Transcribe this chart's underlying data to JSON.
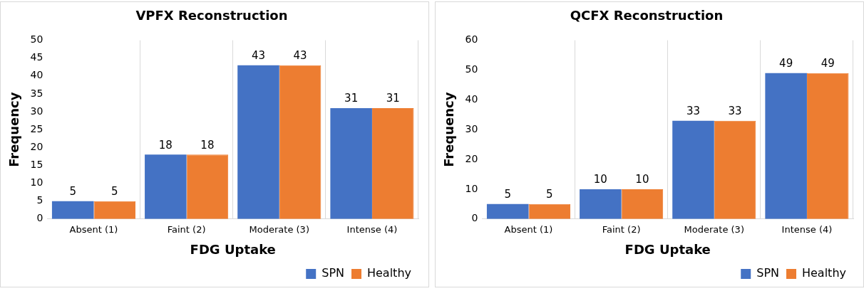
{
  "chart_data": [
    {
      "type": "bar",
      "title": "VPFX Reconstruction",
      "xlabel": "FDG Uptake",
      "ylabel": "Frequency",
      "categories": [
        "Absent (1)",
        "Faint (2)",
        "Moderate (3)",
        "Intense (4)"
      ],
      "series": [
        {
          "name": "SPN",
          "color": "#4472c4",
          "values": [
            5,
            18,
            43,
            31
          ]
        },
        {
          "name": "Healthy",
          "color": "#ed7d31",
          "values": [
            5,
            18,
            43,
            31
          ]
        }
      ],
      "ylim": [
        0,
        50
      ],
      "yticks": [
        0,
        5,
        10,
        15,
        20,
        25,
        30,
        35,
        40,
        45,
        50
      ],
      "grid": false,
      "legend": "bottom right",
      "data_labels": true
    },
    {
      "type": "bar",
      "title": "QCFX Reconstruction",
      "xlabel": "FDG Uptake",
      "ylabel": "Frequency",
      "categories": [
        "Absent (1)",
        "Faint (2)",
        "Moderate (3)",
        "Intense (4)"
      ],
      "series": [
        {
          "name": "SPN",
          "color": "#4472c4",
          "values": [
            5,
            10,
            33,
            49
          ]
        },
        {
          "name": "Healthy",
          "color": "#ed7d31",
          "values": [
            5,
            10,
            33,
            49
          ]
        }
      ],
      "ylim": [
        0,
        60
      ],
      "yticks": [
        0,
        10,
        20,
        30,
        40,
        50,
        60
      ],
      "grid": false,
      "legend": "bottom right",
      "data_labels": true
    }
  ]
}
